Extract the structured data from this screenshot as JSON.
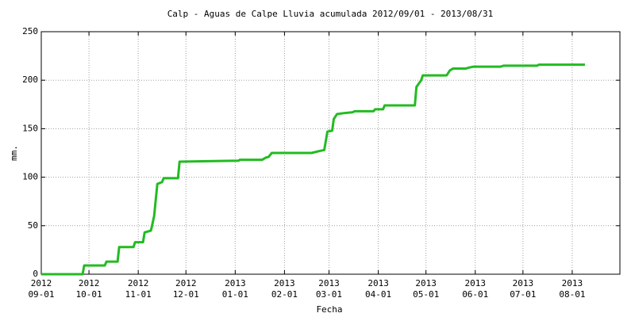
{
  "chart_data": {
    "type": "line",
    "title": "Calp - Aguas de Calpe Lluvia acumulada 2012/09/01 - 2013/08/31",
    "x_label": "Fecha",
    "y_label": "mm.",
    "x": [
      "2012-09-01",
      "2012-09-27",
      "2012-09-28",
      "2012-10-11",
      "2012-10-12",
      "2012-10-19",
      "2012-10-20",
      "2012-10-29",
      "2012-10-30",
      "2012-11-04",
      "2012-11-05",
      "2012-11-09",
      "2012-11-11",
      "2012-11-13",
      "2012-11-16",
      "2012-11-17",
      "2012-11-26",
      "2012-11-27",
      "2013-01-03",
      "2013-01-04",
      "2013-01-18",
      "2013-01-20",
      "2013-01-22",
      "2013-01-24",
      "2013-02-18",
      "2013-02-23",
      "2013-02-26",
      "2013-02-28",
      "2013-03-03",
      "2013-03-04",
      "2013-03-06",
      "2013-03-10",
      "2013-03-16",
      "2013-03-17",
      "2013-03-29",
      "2013-03-30",
      "2013-04-04",
      "2013-04-05",
      "2013-04-24",
      "2013-04-25",
      "2013-04-28",
      "2013-04-29",
      "2013-05-14",
      "2013-05-16",
      "2013-05-18",
      "2013-05-26",
      "2013-05-28",
      "2013-05-31",
      "2013-06-17",
      "2013-06-19",
      "2013-07-10",
      "2013-07-11",
      "2013-08-09"
    ],
    "series": [
      {
        "color": "#22bb22",
        "values": [
          0,
          0,
          9,
          9,
          13,
          13,
          28,
          28,
          33,
          33,
          43,
          45,
          60,
          93,
          95,
          99,
          99,
          116,
          117,
          118,
          118,
          120,
          121,
          125,
          125,
          127,
          128,
          147,
          148,
          160,
          165,
          166,
          167,
          168,
          168,
          170,
          170,
          174,
          174,
          193,
          200,
          205,
          205,
          210,
          212,
          212,
          213,
          214,
          214,
          215,
          215,
          216,
          216
        ]
      }
    ],
    "xlim": [
      "2012-09-01",
      "2013-08-31"
    ],
    "xticks": [
      {
        "value": "2012-09-01",
        "label": [
          "2012",
          "09-01"
        ]
      },
      {
        "value": "2012-10-01",
        "label": [
          "2012",
          "10-01"
        ]
      },
      {
        "value": "2012-11-01",
        "label": [
          "2012",
          "11-01"
        ]
      },
      {
        "value": "2012-12-01",
        "label": [
          "2012",
          "12-01"
        ]
      },
      {
        "value": "2013-01-01",
        "label": [
          "2013",
          "01-01"
        ]
      },
      {
        "value": "2013-02-01",
        "label": [
          "2013",
          "02-01"
        ]
      },
      {
        "value": "2013-03-01",
        "label": [
          "2013",
          "03-01"
        ]
      },
      {
        "value": "2013-04-01",
        "label": [
          "2013",
          "04-01"
        ]
      },
      {
        "value": "2013-05-01",
        "label": [
          "2013",
          "05-01"
        ]
      },
      {
        "value": "2013-06-01",
        "label": [
          "2013",
          "06-01"
        ]
      },
      {
        "value": "2013-07-01",
        "label": [
          "2013",
          "07-01"
        ]
      },
      {
        "value": "2013-08-01",
        "label": [
          "2013",
          "08-01"
        ]
      }
    ],
    "ylim": [
      0,
      250
    ],
    "yticks": [
      0,
      50,
      100,
      150,
      200,
      250
    ],
    "grid": true
  }
}
